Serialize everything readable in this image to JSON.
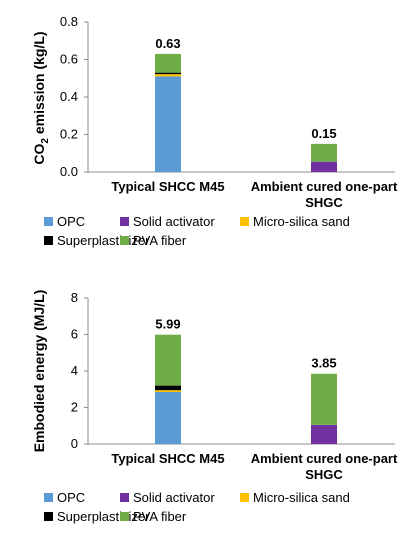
{
  "colors": {
    "OPC": "#5b9bd5",
    "Solid activator": "#7030a0",
    "Micro-silica sand": "#ffc000",
    "Superplasticizer": "#000000",
    "PVA fiber": "#70ad47"
  },
  "chart_data": [
    {
      "type": "bar",
      "stacked": true,
      "ylabel": "CO2 emission (kg/L)",
      "ylabel_main": "CO",
      "ylabel_sub": "2",
      "ylabel_rest": " emission (kg/L)",
      "ylim": [
        0,
        0.8
      ],
      "yticks": [
        "0.0",
        "0.2",
        "0.4",
        "0.6",
        "0.8"
      ],
      "categories": [
        [
          "Typical SHCC M45"
        ],
        [
          "Ambient cured one-part",
          "SHGC"
        ]
      ],
      "series": [
        {
          "name": "OPC",
          "values": [
            0.51,
            0
          ]
        },
        {
          "name": "Solid activator",
          "values": [
            0,
            0.055
          ]
        },
        {
          "name": "Micro-silica sand",
          "values": [
            0.012,
            0
          ]
        },
        {
          "name": "Superplasticizer",
          "values": [
            0.008,
            0
          ]
        },
        {
          "name": "PVA fiber",
          "values": [
            0.1,
            0.095
          ]
        }
      ],
      "totals": [
        "0.63",
        "0.15"
      ],
      "grid": false,
      "legend_position": "bottom"
    },
    {
      "type": "bar",
      "stacked": true,
      "ylabel": "Embodied energy (MJ/L)",
      "ylim": [
        0,
        8
      ],
      "yticks": [
        "0",
        "2",
        "4",
        "6",
        "8"
      ],
      "categories": [
        [
          "Typical SHCC M45"
        ],
        [
          "Ambient cured one-part",
          "SHGC"
        ]
      ],
      "series": [
        {
          "name": "OPC",
          "values": [
            2.85,
            0
          ]
        },
        {
          "name": "Solid activator",
          "values": [
            0,
            1.05
          ]
        },
        {
          "name": "Micro-silica sand",
          "values": [
            0.1,
            0
          ]
        },
        {
          "name": "Superplasticizer",
          "values": [
            0.25,
            0
          ]
        },
        {
          "name": "PVA fiber",
          "values": [
            2.79,
            2.8
          ]
        }
      ],
      "totals": [
        "5.99",
        "3.85"
      ],
      "grid": false,
      "legend_position": "bottom"
    }
  ]
}
